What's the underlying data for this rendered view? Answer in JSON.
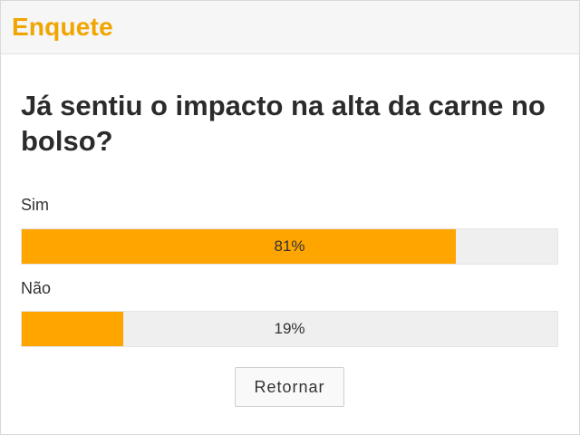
{
  "widget": {
    "title": "Enquete",
    "accent_color": "#f0a500"
  },
  "poll": {
    "question": "Já sentiu o impacto na alta da carne no bolso?",
    "bar_color": "#ffa500",
    "track_color": "#efefef",
    "options": [
      {
        "label": "Sim",
        "percent": 81,
        "percent_label": "81%"
      },
      {
        "label": "Não",
        "percent": 19,
        "percent_label": "19%"
      }
    ]
  },
  "actions": {
    "back_label": "Retornar"
  }
}
